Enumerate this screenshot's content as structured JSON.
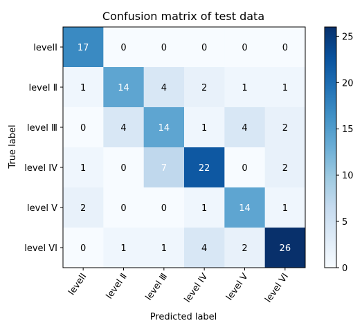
{
  "chart_data": {
    "type": "heatmap",
    "title": "Confusion matrix of test data",
    "xlabel": "Predicted label",
    "ylabel": "True label",
    "x_categories": [
      "levelI",
      "level Ⅱ",
      "level Ⅲ",
      "level IV",
      "level V",
      "level VI"
    ],
    "y_categories": [
      "levelI",
      "level Ⅱ",
      "level Ⅲ",
      "level IV",
      "level V",
      "level VI"
    ],
    "values": [
      [
        17,
        0,
        0,
        0,
        0,
        0
      ],
      [
        1,
        14,
        4,
        2,
        1,
        1
      ],
      [
        0,
        4,
        14,
        1,
        4,
        2
      ],
      [
        1,
        0,
        7,
        22,
        0,
        2
      ],
      [
        2,
        0,
        0,
        1,
        14,
        1
      ],
      [
        0,
        1,
        1,
        4,
        2,
        26
      ]
    ],
    "colormap": "Blues",
    "value_range": [
      0,
      26
    ],
    "colorbar_ticks": [
      0,
      5,
      10,
      15,
      20,
      25
    ]
  }
}
